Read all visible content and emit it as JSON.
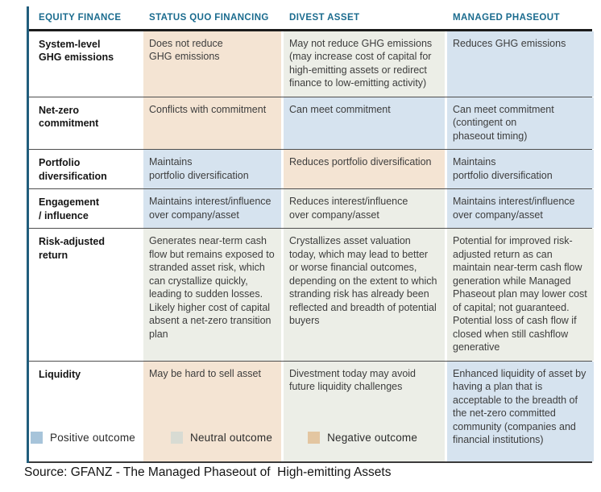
{
  "table": {
    "columns": [
      "EQUITY FINANCE",
      "STATUS QUO FINANCING",
      "DIVEST ASSET",
      "MANAGED PHASEOUT"
    ],
    "rows": [
      {
        "label": "System-level\nGHG emissions",
        "cells": [
          {
            "text": "Does not reduce\nGHG emissions",
            "outcome": "negative"
          },
          {
            "text": "May not reduce GHG emissions (may increase cost of capital for high-emitting assets or redirect finance to low-emitting activity)",
            "outcome": "neutral"
          },
          {
            "text": "Reduces GHG emissions",
            "outcome": "positive"
          }
        ]
      },
      {
        "label": "Net-zero\ncommitment",
        "cells": [
          {
            "text": "Conflicts with commitment",
            "outcome": "negative"
          },
          {
            "text": "Can meet commitment",
            "outcome": "positive"
          },
          {
            "text": "Can meet commitment\n(contingent on\nphaseout timing)",
            "outcome": "positive"
          }
        ]
      },
      {
        "label": "Portfolio\ndiversification",
        "cells": [
          {
            "text": "Maintains\nportfolio diversification",
            "outcome": "positive"
          },
          {
            "text": "Reduces portfolio diversification",
            "outcome": "negative"
          },
          {
            "text": "Maintains\nportfolio diversification",
            "outcome": "positive"
          }
        ]
      },
      {
        "label": "Engagement\n/ influence",
        "cells": [
          {
            "text": "Maintains interest/influence\nover company/asset",
            "outcome": "positive"
          },
          {
            "text": "Reduces interest/influence\nover company/asset",
            "outcome": "neutral"
          },
          {
            "text": "Maintains interest/influence\nover company/asset",
            "outcome": "positive"
          }
        ]
      },
      {
        "label": "Risk-adjusted\nreturn",
        "cells": [
          {
            "text": "Generates near-term cash flow but remains exposed to stranded asset risk, which can crystallize quickly, leading to sudden losses. Likely higher cost of capital absent a net-zero transition plan",
            "outcome": "neutral"
          },
          {
            "text": "Crystallizes asset valuation today, which may lead to better or worse financial outcomes, depending on the extent to which stranding risk has already been reflected and breadth of potential buyers",
            "outcome": "neutral"
          },
          {
            "text": "Potential for improved risk-adjusted return as can maintain near-term cash flow generation while Managed Phaseout plan may lower cost of capital; not guaranteed. Potential loss of cash flow if closed when still cashflow generative",
            "outcome": "neutral"
          }
        ]
      },
      {
        "label": "Liquidity",
        "cells": [
          {
            "text": "May be hard to sell asset",
            "outcome": "negative"
          },
          {
            "text": "Divestment today may avoid\nfuture liquidity challenges",
            "outcome": "neutral"
          },
          {
            "text": "Enhanced liquidity of asset by having a plan that is acceptable to the breadth of the net-zero committed community (companies and financial institutions)",
            "outcome": "positive"
          }
        ]
      }
    ]
  },
  "legend": {
    "items": [
      {
        "label": "Positive outcome",
        "key": "positive"
      },
      {
        "label": "Neutral outcome",
        "key": "neutral"
      },
      {
        "label": "Negative outcome",
        "key": "negative"
      }
    ]
  },
  "source": "Source: GFANZ - The Managed Phaseout of  High-emitting Assets",
  "colors": {
    "header_text": "#1a6b8e",
    "accent_bar": "#215d7c",
    "positive_cell": "#d6e3ef",
    "neutral_cell": "#eceee7",
    "negative_cell": "#f4e4d3",
    "legend_positive": "#a7c4da",
    "legend_neutral": "#d8dbd3",
    "legend_negative": "#e3c6a1"
  }
}
